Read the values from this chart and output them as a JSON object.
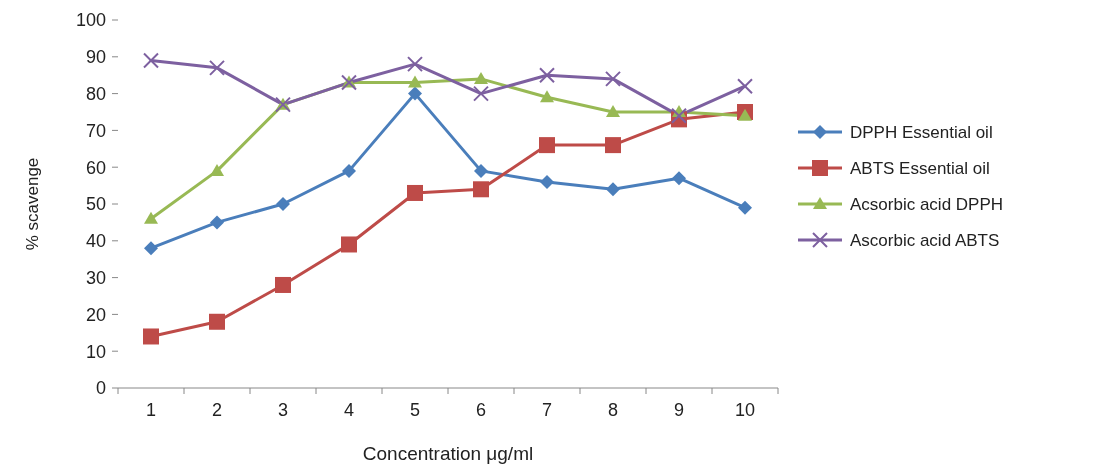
{
  "chart_data": {
    "type": "line",
    "xlabel": "Concentration μg/ml",
    "ylabel": "% scavenge",
    "categories": [
      "1",
      "2",
      "3",
      "4",
      "5",
      "6",
      "7",
      "8",
      "9",
      "10"
    ],
    "ylim": [
      0,
      100
    ],
    "yticks": [
      0,
      10,
      20,
      30,
      40,
      50,
      60,
      70,
      80,
      90,
      100
    ],
    "grid": false,
    "legend": "right",
    "series": [
      {
        "name": "DPPH Essential oil",
        "color": "#4a7ebb",
        "marker": "diamond",
        "values": [
          38,
          45,
          50,
          59,
          80,
          59,
          56,
          54,
          57,
          49
        ]
      },
      {
        "name": "ABTS Essential oil",
        "color": "#be4b48",
        "marker": "square",
        "values": [
          14,
          18,
          28,
          39,
          53,
          54,
          66,
          66,
          73,
          75
        ]
      },
      {
        "name": "Acsorbic acid DPPH",
        "color": "#98b954",
        "marker": "triangle",
        "values": [
          46,
          59,
          77,
          83,
          83,
          84,
          79,
          75,
          75,
          74
        ]
      },
      {
        "name": "Ascorbic acid ABTS",
        "color": "#7d60a0",
        "marker": "cross",
        "values": [
          89,
          87,
          77,
          83,
          88,
          80,
          85,
          84,
          74,
          82
        ]
      }
    ]
  }
}
